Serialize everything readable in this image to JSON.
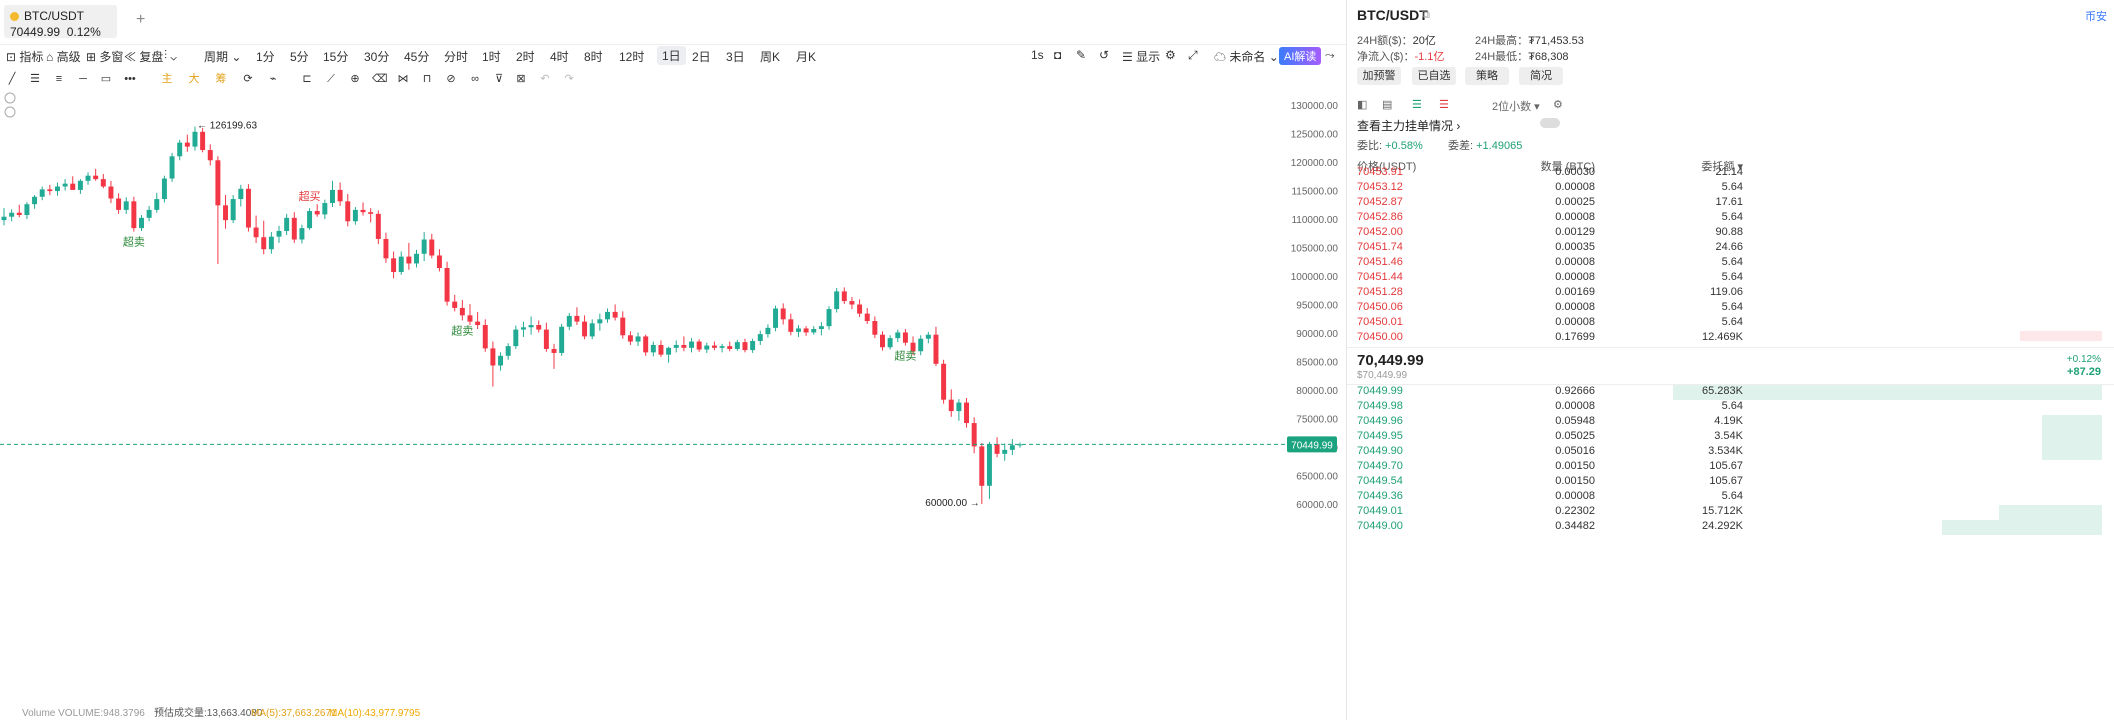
{
  "tab": {
    "symbol": "BTC/USDT",
    "price": "70449.99",
    "change": "0.12%",
    "add": "+"
  },
  "toolbar": {
    "indicators": "指标",
    "advanced": "高级",
    "multi": "多窗",
    "replay": "复盘",
    "period": "周期",
    "intervals": [
      "1分",
      "5分",
      "15分",
      "30分",
      "45分",
      "分时",
      "1时",
      "2时",
      "4时",
      "8时",
      "12时",
      "1日",
      "2日",
      "3日",
      "周K",
      "月K"
    ],
    "active_interval": "1日",
    "right": {
      "sec": "1s",
      "display": "显示",
      "unnamed": "未命名",
      "ai": "AI解读"
    }
  },
  "drawbar": {
    "main": "主",
    "big": "大",
    "chip": "筹"
  },
  "chart_data": {
    "type": "candlestick",
    "title": "",
    "y_ticks": [
      "130000.00",
      "125000.00",
      "120000.00",
      "115000.00",
      "110000.00",
      "105000.00",
      "100000.00",
      "95000.00",
      "90000.00",
      "85000.00",
      "80000.00",
      "75000.00",
      "70000.00",
      "65000.00",
      "60000.00"
    ],
    "ylim": [
      59000,
      131500
    ],
    "last_price": "70449.99",
    "high_label": "126199.63",
    "low_label": "60000.00",
    "signals": [
      {
        "text": "超卖",
        "kind": "sell"
      },
      {
        "text": "超买",
        "kind": "buy"
      },
      {
        "text": "超卖",
        "kind": "sell"
      },
      {
        "text": "超卖",
        "kind": "sell"
      }
    ],
    "ohlc": [
      [
        109800,
        111900,
        108900,
        110400
      ],
      [
        110400,
        111700,
        109600,
        111100
      ],
      [
        111100,
        112500,
        110300,
        110700
      ],
      [
        110700,
        113000,
        110000,
        112600
      ],
      [
        112600,
        114200,
        111800,
        113900
      ],
      [
        113900,
        115700,
        113300,
        115200
      ],
      [
        115200,
        116000,
        114200,
        114900
      ],
      [
        114900,
        116400,
        114100,
        115700
      ],
      [
        115700,
        117000,
        115000,
        116200
      ],
      [
        116200,
        117500,
        115300,
        115100
      ],
      [
        115100,
        117000,
        114400,
        116700
      ],
      [
        116700,
        118200,
        116000,
        117600
      ],
      [
        117600,
        118800,
        116700,
        117000
      ],
      [
        117000,
        117900,
        115400,
        115700
      ],
      [
        115700,
        116700,
        112800,
        113600
      ],
      [
        113600,
        114500,
        110900,
        111600
      ],
      [
        111600,
        113800,
        110900,
        113100
      ],
      [
        113100,
        113900,
        107800,
        108400
      ],
      [
        108400,
        110700,
        107900,
        110200
      ],
      [
        110200,
        112300,
        109600,
        111600
      ],
      [
        111600,
        114600,
        111100,
        113500
      ],
      [
        113500,
        117600,
        112900,
        117100
      ],
      [
        117100,
        121600,
        116500,
        121000
      ],
      [
        121000,
        123900,
        120300,
        123400
      ],
      [
        123400,
        124800,
        121800,
        122700
      ],
      [
        122700,
        126199.63,
        122000,
        125300
      ],
      [
        125300,
        126000,
        121700,
        122100
      ],
      [
        122100,
        123100,
        119400,
        120300
      ],
      [
        120300,
        121000,
        102100,
        112400
      ],
      [
        112400,
        114200,
        108300,
        109800
      ],
      [
        109800,
        114200,
        109300,
        113500
      ],
      [
        113500,
        116000,
        112200,
        115300
      ],
      [
        115300,
        116100,
        107800,
        108500
      ],
      [
        108500,
        110600,
        105800,
        106800
      ],
      [
        106800,
        109700,
        103800,
        104700
      ],
      [
        104700,
        107700,
        103900,
        106900
      ],
      [
        106900,
        108800,
        105800,
        107900
      ],
      [
        107900,
        110900,
        107200,
        110200
      ],
      [
        110200,
        111200,
        105800,
        106400
      ],
      [
        106400,
        109000,
        105700,
        108400
      ],
      [
        108400,
        111900,
        108100,
        111400
      ],
      [
        111400,
        112600,
        110400,
        110800
      ],
      [
        110800,
        113400,
        110000,
        112800
      ],
      [
        112800,
        116700,
        112100,
        115100
      ],
      [
        115100,
        116400,
        112300,
        113100
      ],
      [
        113100,
        114400,
        108700,
        109600
      ],
      [
        109600,
        112100,
        109000,
        111600
      ],
      [
        111600,
        112900,
        110600,
        111200
      ],
      [
        111200,
        111900,
        109400,
        110900
      ],
      [
        110900,
        111500,
        105600,
        106500
      ],
      [
        106500,
        107600,
        102300,
        103100
      ],
      [
        103100,
        104300,
        99600,
        100700
      ],
      [
        100700,
        104300,
        100200,
        103400
      ],
      [
        103400,
        105800,
        101100,
        102200
      ],
      [
        102200,
        104600,
        101500,
        103900
      ],
      [
        103900,
        107700,
        102600,
        106400
      ],
      [
        106400,
        107400,
        103100,
        103600
      ],
      [
        103600,
        104700,
        100800,
        101400
      ],
      [
        101400,
        102500,
        94800,
        95500
      ],
      [
        95500,
        96700,
        93800,
        94400
      ],
      [
        94400,
        95800,
        92200,
        93100
      ],
      [
        93100,
        95100,
        91400,
        92000
      ],
      [
        92000,
        93700,
        90700,
        91400
      ],
      [
        91400,
        92400,
        86700,
        87300
      ],
      [
        87300,
        88500,
        80600,
        84300
      ],
      [
        84300,
        86600,
        83400,
        86000
      ],
      [
        86000,
        88200,
        85300,
        87700
      ],
      [
        87700,
        91300,
        87200,
        90600
      ],
      [
        90600,
        92000,
        89300,
        91000
      ],
      [
        91000,
        92900,
        89700,
        91400
      ],
      [
        91400,
        92200,
        90100,
        90600
      ],
      [
        90600,
        91800,
        86700,
        87200
      ],
      [
        87200,
        88100,
        83700,
        86500
      ],
      [
        86500,
        91600,
        86000,
        91100
      ],
      [
        91100,
        93500,
        90500,
        93000
      ],
      [
        93000,
        94500,
        91400,
        92000
      ],
      [
        92000,
        93100,
        88900,
        89400
      ],
      [
        89400,
        92400,
        88900,
        91700
      ],
      [
        91700,
        93400,
        90400,
        92400
      ],
      [
        92400,
        94300,
        91800,
        93700
      ],
      [
        93700,
        95000,
        92200,
        92700
      ],
      [
        92700,
        93800,
        89000,
        89600
      ],
      [
        89600,
        90300,
        87900,
        88500
      ],
      [
        88500,
        90100,
        87700,
        89400
      ],
      [
        89400,
        89700,
        86000,
        86600
      ],
      [
        86600,
        88500,
        85900,
        87900
      ],
      [
        87900,
        88700,
        85800,
        86200
      ],
      [
        86200,
        87600,
        84800,
        87400
      ],
      [
        87400,
        88700,
        86600,
        87900
      ],
      [
        87900,
        89400,
        86800,
        87400
      ],
      [
        87400,
        89100,
        86600,
        88500
      ],
      [
        88500,
        88900,
        86700,
        87100
      ],
      [
        87100,
        88300,
        86500,
        87800
      ],
      [
        87800,
        88500,
        87000,
        87400
      ],
      [
        87400,
        88100,
        86600,
        87700
      ],
      [
        87700,
        88500,
        86800,
        87200
      ],
      [
        87200,
        88800,
        86900,
        88400
      ],
      [
        88400,
        89000,
        86600,
        87000
      ],
      [
        87000,
        89000,
        86500,
        88600
      ],
      [
        88600,
        90400,
        87900,
        89800
      ],
      [
        89800,
        91500,
        89200,
        90900
      ],
      [
        90900,
        94800,
        90300,
        94300
      ],
      [
        94300,
        95200,
        91500,
        92400
      ],
      [
        92400,
        93400,
        89600,
        90200
      ],
      [
        90200,
        91400,
        89300,
        90800
      ],
      [
        90800,
        91200,
        89500,
        90100
      ],
      [
        90100,
        91200,
        89700,
        90700
      ],
      [
        90700,
        91900,
        89600,
        91200
      ],
      [
        91200,
        94700,
        90600,
        94200
      ],
      [
        94200,
        97900,
        93600,
        97300
      ],
      [
        97300,
        98000,
        95100,
        95600
      ],
      [
        95600,
        96300,
        94200,
        95000
      ],
      [
        95000,
        95900,
        92800,
        93400
      ],
      [
        93400,
        94400,
        91600,
        92100
      ],
      [
        92100,
        92900,
        89100,
        89700
      ],
      [
        89700,
        90300,
        86900,
        87500
      ],
      [
        87500,
        89600,
        87100,
        89100
      ],
      [
        89100,
        90600,
        88400,
        90100
      ],
      [
        90100,
        90700,
        87800,
        88300
      ],
      [
        88300,
        89400,
        86100,
        86800
      ],
      [
        86800,
        89600,
        86100,
        89000
      ],
      [
        89000,
        90200,
        88200,
        89700
      ],
      [
        89700,
        91100,
        84200,
        84600
      ],
      [
        84600,
        85300,
        77600,
        78300
      ],
      [
        78300,
        80100,
        75300,
        76300
      ],
      [
        76300,
        78400,
        74600,
        77800
      ],
      [
        77800,
        78600,
        73400,
        74200
      ],
      [
        74200,
        75200,
        68900,
        70100
      ],
      [
        70100,
        70700,
        60000,
        63200
      ],
      [
        63200,
        70900,
        60900,
        70500
      ],
      [
        70500,
        71700,
        68200,
        68800
      ],
      [
        68800,
        70600,
        67600,
        69500
      ],
      [
        69500,
        71400,
        68600,
        70300
      ],
      [
        70300,
        70800,
        69900,
        70449.99
      ]
    ]
  },
  "volume_legend": {
    "vol": "Volume  VOLUME:948.3796",
    "est": "预估成交量:13,663.4080",
    "ma5": "MA(5):37,663.2671",
    "ma10": "MA(10):43,977.9795"
  },
  "panel": {
    "title": "BTC/USDT",
    "exchange": "币安",
    "turnover_label": "24H额($)：",
    "turnover": "20亿",
    "netflow_label": "净流入($)：",
    "netflow": "-1.1亿",
    "high_label": "24H最高：",
    "high": "₮71,453.53",
    "low_label": "24H最低：",
    "low": "₮68,308",
    "buttons": [
      "加预警",
      "已自选",
      "策略",
      "简况"
    ],
    "decimals": "2位小数",
    "depth_link": "查看主力挂单情况",
    "ratio_label": "委比:",
    "ratio": "+0.58%",
    "diff_label": "委差:",
    "diff": "+1.49065",
    "headers": [
      "价格(USDT)",
      "数量 (BTC)",
      "委托额"
    ],
    "asks": [
      [
        "70453.91",
        "0.00030",
        "21.14"
      ],
      [
        "70453.12",
        "0.00008",
        "5.64"
      ],
      [
        "70452.87",
        "0.00025",
        "17.61"
      ],
      [
        "70452.86",
        "0.00008",
        "5.64"
      ],
      [
        "70452.00",
        "0.00129",
        "90.88"
      ],
      [
        "70451.74",
        "0.00035",
        "24.66"
      ],
      [
        "70451.46",
        "0.00008",
        "5.64"
      ],
      [
        "70451.44",
        "0.00008",
        "5.64"
      ],
      [
        "70451.28",
        "0.00169",
        "119.06"
      ],
      [
        "70450.06",
        "0.00008",
        "5.64"
      ],
      [
        "70450.01",
        "0.00008",
        "5.64"
      ],
      [
        "70450.00",
        "0.17699",
        "12.469K"
      ]
    ],
    "last": "70,449.99",
    "last_sub": "$70,449.99",
    "change_pct": "+0.12%",
    "change_abs": "+87.29",
    "bids": [
      [
        "70449.99",
        "0.92666",
        "65.283K"
      ],
      [
        "70449.98",
        "0.00008",
        "5.64"
      ],
      [
        "70449.96",
        "0.05948",
        "4.19K"
      ],
      [
        "70449.95",
        "0.05025",
        "3.54K"
      ],
      [
        "70449.90",
        "0.05016",
        "3.534K"
      ],
      [
        "70449.70",
        "0.00150",
        "105.67"
      ],
      [
        "70449.54",
        "0.00150",
        "105.67"
      ],
      [
        "70449.36",
        "0.00008",
        "5.64"
      ],
      [
        "70449.01",
        "0.22302",
        "15.712K"
      ],
      [
        "70449.00",
        "0.34482",
        "24.292K"
      ]
    ],
    "colors": {
      "up": "#22ab94",
      "down": "#f23645",
      "ask_text": "#e4393c",
      "bid_text": "#1fa174"
    }
  }
}
